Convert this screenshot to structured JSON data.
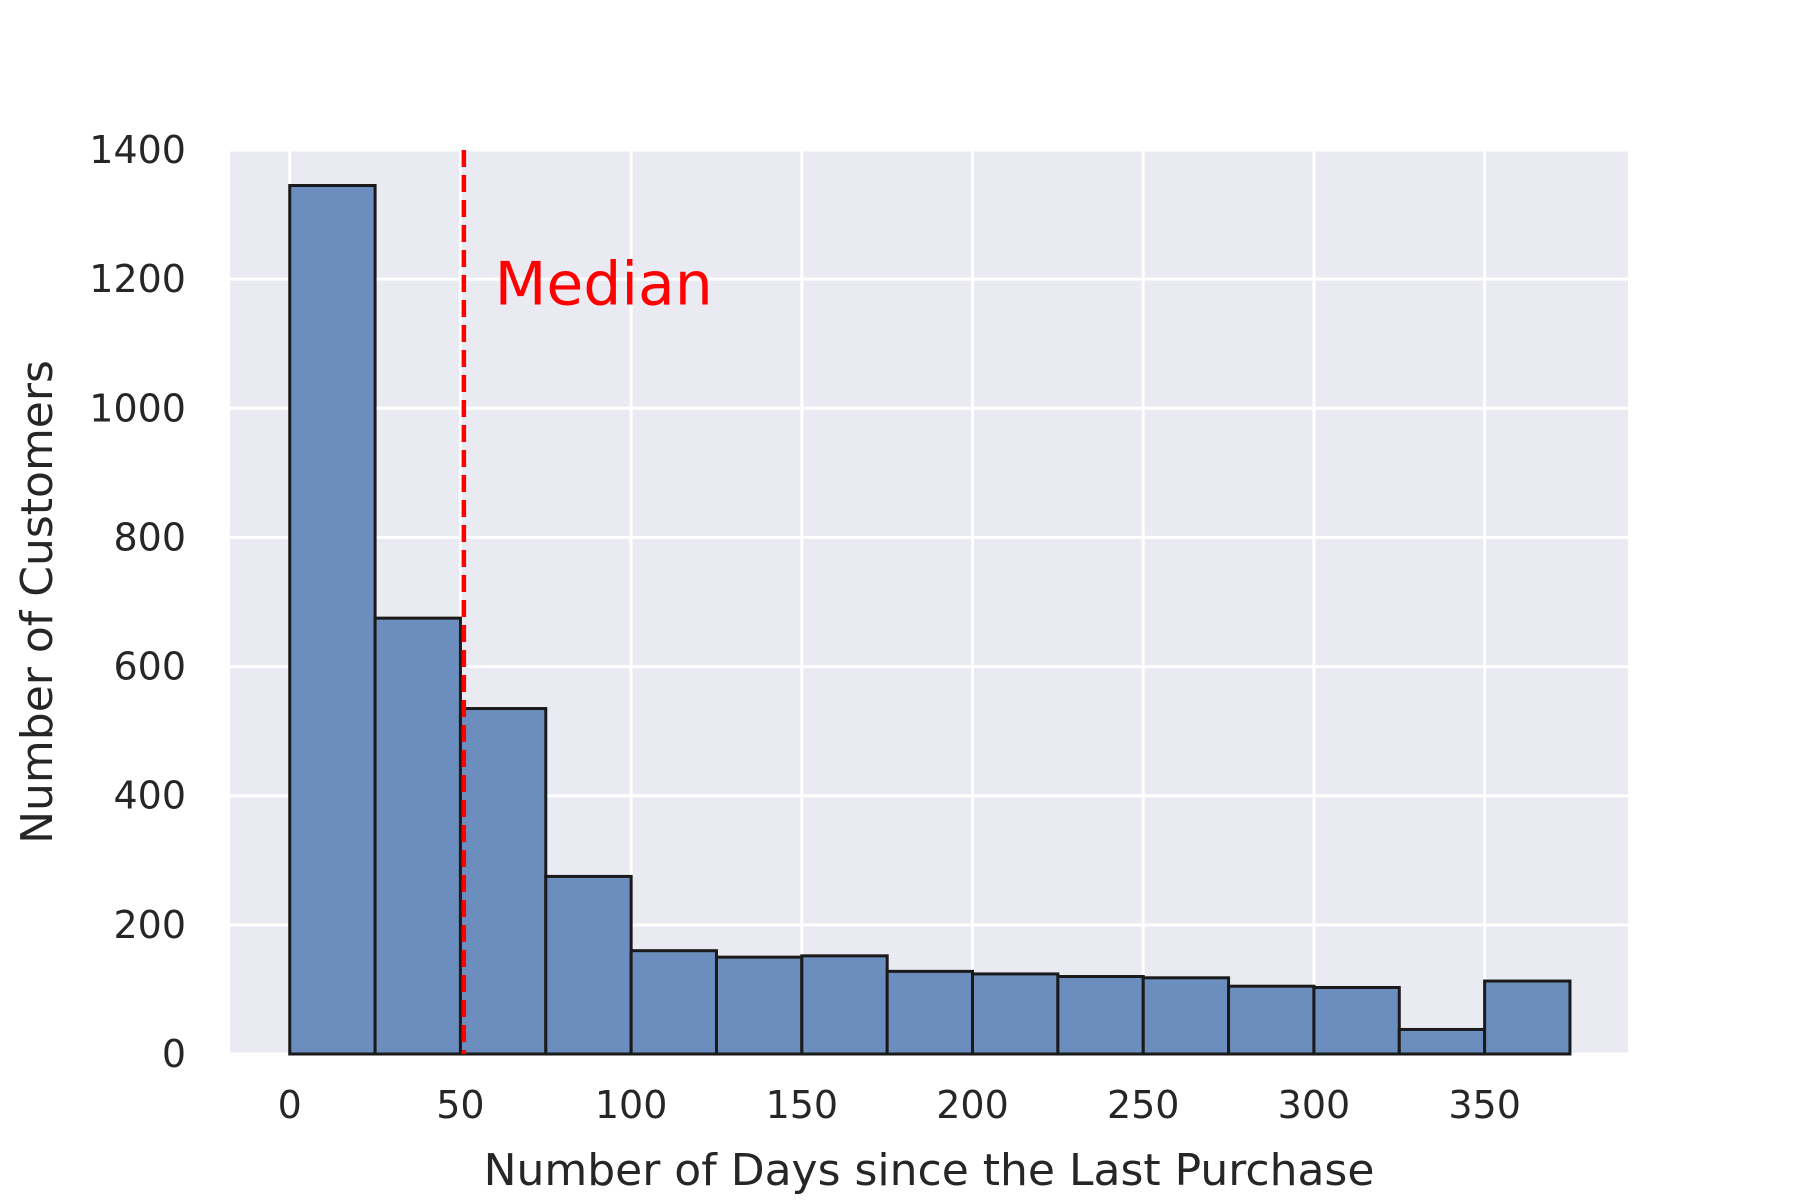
{
  "chart_data": {
    "type": "histogram",
    "xlabel": "Number of Days since the Last Purchase",
    "ylabel": "Number of Customers",
    "xlim": [
      -17.5,
      392
    ],
    "ylim": [
      0,
      1400
    ],
    "x_ticks": [
      0,
      50,
      100,
      150,
      200,
      250,
      300,
      350
    ],
    "y_ticks": [
      0,
      200,
      400,
      600,
      800,
      1000,
      1200,
      1400
    ],
    "bin_edges": [
      0,
      25,
      50,
      75,
      100,
      125,
      150,
      175,
      200,
      225,
      250,
      275,
      300,
      325,
      350,
      375
    ],
    "counts": [
      1345,
      675,
      535,
      275,
      160,
      150,
      152,
      128,
      124,
      120,
      118,
      105,
      103,
      38,
      113
    ],
    "median": 51,
    "annotation": {
      "text": "Median",
      "x": 60,
      "y": 1195
    },
    "grid": true,
    "colors": {
      "bar_fill": "#6c8ebf",
      "bar_edge": "#1a1a1a",
      "background": "#eaeaf2",
      "grid": "#ffffff",
      "median_line": "#ff0000"
    }
  }
}
